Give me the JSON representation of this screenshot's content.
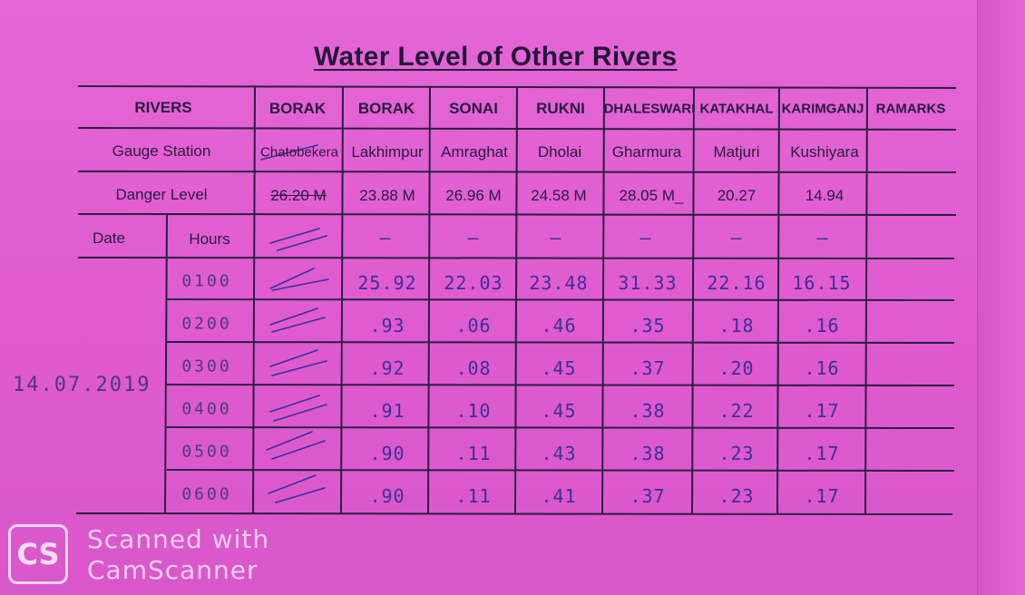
{
  "title": "Water Level of Other Rivers",
  "header": {
    "rivers_label": "RIVERS",
    "rivers": [
      "BORAK",
      "BORAK",
      "SONAI",
      "RUKNI",
      "DHALESWARI",
      "KATAKHAL",
      "KARIMGANJ"
    ],
    "remarks_label": "RAMARKS"
  },
  "gauge_station": {
    "label": "Gauge Station",
    "values": [
      "Chatobekera",
      "Lakhimpur",
      "Amraghat",
      "Dholai",
      "Gharmura",
      "Matjuri",
      "Kushiyara"
    ]
  },
  "danger_level": {
    "label": "Danger  Level",
    "values": [
      "26.20 M",
      "23.88 M",
      "26.96 M",
      "24.58 M",
      "28.05 M_",
      "20.27",
      "14.94"
    ]
  },
  "subheader": {
    "date_label": "Date",
    "hours_label": "Hours",
    "dashes": [
      "—",
      "—",
      "—",
      "—",
      "—",
      "—"
    ]
  },
  "date_value": "14.07.2019",
  "rows": [
    {
      "hour": "0100",
      "values": [
        "25.92",
        "22.03",
        "23.48",
        "31.33",
        "22.16",
        "16.15"
      ]
    },
    {
      "hour": "0200",
      "values": [
        ".93",
        ".06",
        ".46",
        ".35",
        ".18",
        ".16"
      ]
    },
    {
      "hour": "0300",
      "values": [
        ".92",
        ".08",
        ".45",
        ".37",
        ".20",
        ".16"
      ]
    },
    {
      "hour": "0400",
      "values": [
        ".91",
        ".10",
        ".45",
        ".38",
        ".22",
        ".17"
      ]
    },
    {
      "hour": "0500",
      "values": [
        ".90",
        ".11",
        ".43",
        ".38",
        ".23",
        ".17"
      ]
    },
    {
      "hour": "0600",
      "values": [
        ".90",
        ".11",
        ".41",
        ".37",
        ".23",
        ".17"
      ]
    }
  ],
  "watermark": {
    "logo": "CS",
    "line1": "Scanned with",
    "line2": "CamScanner"
  }
}
